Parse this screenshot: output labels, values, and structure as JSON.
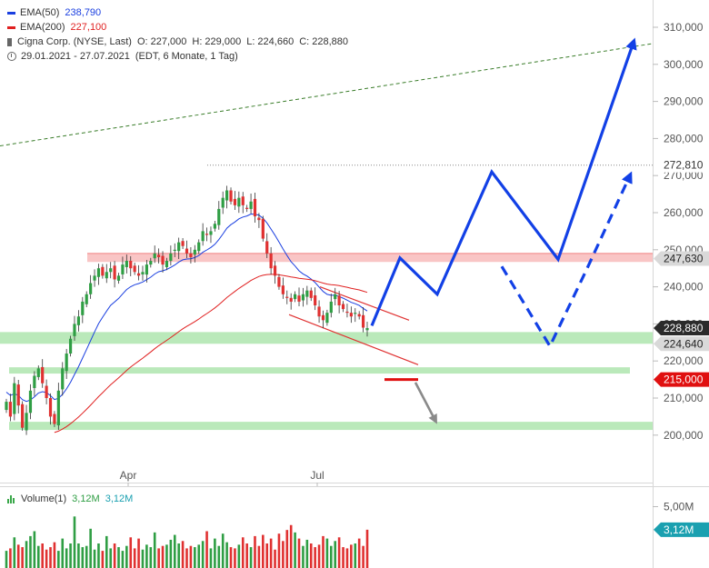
{
  "legend": {
    "ema50": {
      "label": "EMA(50)",
      "value": "238,790",
      "color": "#1a3fe0"
    },
    "ema200": {
      "label": "EMA(200)",
      "value": "227,100",
      "color": "#e02020"
    },
    "ohlc": {
      "name": "Cigna Corp. (NYSE, Last)",
      "open": "O: 227,000",
      "high": "H: 229,000",
      "low": "L: 224,660",
      "close": "C: 228,880"
    },
    "period": {
      "range": "29.01.2021 - 27.07.2021",
      "info": "(EDT, 6 Monate, 1 Tag)"
    }
  },
  "volume_legend": {
    "label": "Volume(1)",
    "value1": "3,12M",
    "value2": "3,12M"
  },
  "chart_data": {
    "type": "candlestick",
    "x_tick_labels": [
      "Apr",
      "Jul"
    ],
    "y_axis": {
      "ylim": [
        198,
        315
      ],
      "ticks": [
        {
          "v": 200,
          "label": "200,000"
        },
        {
          "v": 210,
          "label": "210,000"
        },
        {
          "v": 220,
          "label": "220,000"
        },
        {
          "v": 230,
          "label": "230,000"
        },
        {
          "v": 240,
          "label": "240,000"
        },
        {
          "v": 250,
          "label": "250,000"
        },
        {
          "v": 260,
          "label": "260,000"
        },
        {
          "v": 270,
          "label": "270,000"
        },
        {
          "v": 280,
          "label": "280,000"
        },
        {
          "v": 290,
          "label": "290,000"
        },
        {
          "v": 300,
          "label": "300,000"
        },
        {
          "v": 310,
          "label": "310,000"
        }
      ]
    },
    "price_markers": [
      {
        "v": 272.81,
        "label": "272,810",
        "style": "plain",
        "dotted_line": true
      },
      {
        "v": 247.63,
        "label": "247,630",
        "style": "grey"
      },
      {
        "v": 228.88,
        "label": "228,880",
        "style": "dark"
      },
      {
        "v": 224.64,
        "label": "224,640",
        "style": "grey"
      },
      {
        "v": 215.0,
        "label": "215,000",
        "style": "red"
      }
    ],
    "volume_axis": {
      "ylim": [
        0,
        6
      ],
      "ticks": [
        {
          "v": 5,
          "label": "5,00M"
        }
      ],
      "current": {
        "v": 3.12,
        "label": "3,12M"
      }
    },
    "close_prices": [
      209,
      205,
      214,
      208,
      202,
      206,
      212,
      216,
      218,
      214,
      210,
      205,
      203,
      212,
      218,
      222,
      226,
      230,
      232,
      236,
      238,
      241,
      243,
      245,
      243,
      244,
      245,
      242,
      243,
      246,
      247,
      245,
      244,
      243,
      244,
      246,
      247,
      249,
      248,
      246,
      247,
      249,
      250,
      252,
      251,
      249,
      248,
      250,
      252,
      255,
      254,
      255,
      257,
      261,
      264,
      266,
      263,
      262,
      264,
      262,
      261,
      263,
      259,
      258,
      253,
      249,
      245,
      243,
      240,
      238,
      237,
      236,
      238,
      236,
      238,
      239,
      237,
      235,
      232,
      231,
      233,
      236,
      238,
      235,
      234,
      233,
      232,
      233,
      232,
      229,
      228.88
    ],
    "volumes": [
      1.4,
      1.6,
      2.5,
      1.9,
      1.7,
      2.2,
      2.6,
      3.0,
      1.8,
      2.0,
      1.5,
      1.7,
      2.1,
      1.4,
      2.4,
      1.6,
      2.0,
      4.2,
      2.0,
      1.7,
      1.8,
      3.2,
      1.5,
      2.0,
      1.4,
      2.6,
      1.6,
      2.0,
      1.7,
      1.4,
      1.8,
      2.5,
      1.6,
      2.4,
      1.5,
      1.9,
      1.7,
      2.9,
      1.6,
      1.8,
      1.9,
      2.3,
      2.7,
      2.0,
      2.2,
      1.6,
      1.8,
      1.7,
      1.9,
      2.2,
      3.0,
      1.6,
      2.4,
      1.8,
      2.8,
      2.1,
      1.7,
      1.6,
      1.9,
      2.5,
      2.0,
      1.7,
      2.6,
      1.8,
      2.7,
      2.0,
      2.4,
      1.5,
      2.8,
      2.2,
      3.1,
      3.5,
      2.9,
      2.4,
      1.8,
      2.3,
      2.0,
      1.7,
      1.9,
      2.6,
      2.4,
      1.8,
      2.2,
      2.5,
      1.7,
      1.6,
      1.9,
      2.0,
      2.4,
      1.8,
      3.12
    ],
    "support_zones": [
      {
        "from": 224.64,
        "to": 227.8
      },
      {
        "from": 216.6,
        "to": 218.3
      },
      {
        "from": 201.4,
        "to": 203.6
      }
    ],
    "resistance_zone": {
      "from": 246.7,
      "to": 249.0
    },
    "projection_solid": [
      [
        409,
        229.5
      ],
      [
        440,
        247.8
      ],
      [
        481,
        238.0
      ],
      [
        541,
        271.0
      ],
      [
        614,
        247.4
      ],
      [
        697,
        306.0
      ]
    ],
    "projection_dashed": [
      [
        552,
        245.5
      ],
      [
        605,
        224.0
      ],
      [
        646,
        245.0
      ],
      [
        693,
        270.0
      ]
    ],
    "trend_line": [
      [
        0,
        278.0
      ],
      [
        718,
        305.6
      ]
    ],
    "upper_channel": [
      [
        352,
        240.0
      ],
      [
        450,
        231.0
      ]
    ],
    "lower_channel": [
      [
        318,
        232.5
      ],
      [
        460,
        219.0
      ]
    ],
    "stop_level": 215.0
  },
  "colors": {
    "up": "#2f9e44",
    "down": "#e03131",
    "projection": "#1240e6",
    "ema50": "#1a3fe0",
    "ema200": "#e02020",
    "support": "#a9e4a9",
    "resistance": "#f7b2b2",
    "trend": "#3a7d2a",
    "stop": "#e01010",
    "arrow_grey": "#8a8a8a",
    "axis_text": "#555555"
  }
}
